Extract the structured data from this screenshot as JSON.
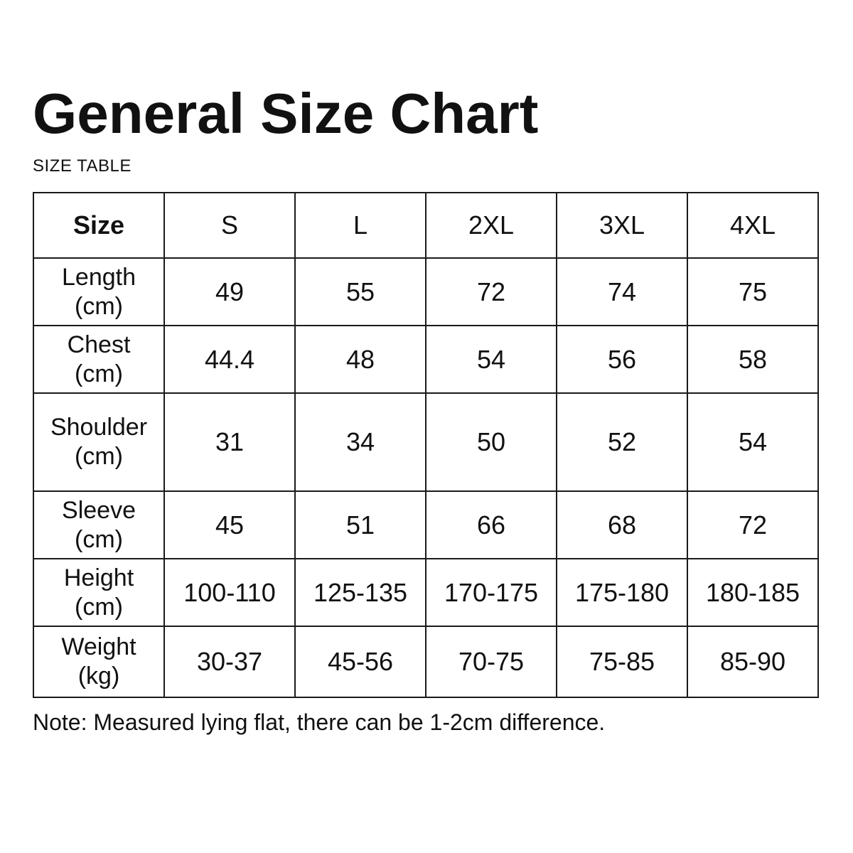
{
  "colors": {
    "background": "#ffffff",
    "text": "#111111",
    "border": "#1a1a1a"
  },
  "header": {
    "title": "General Size Chart",
    "subtitle": "SIZE TABLE"
  },
  "note": "Note: Measured lying flat, there can be 1-2cm difference.",
  "table": {
    "columns": [
      "Size",
      "S",
      "L",
      "2XL",
      "3XL",
      "4XL"
    ],
    "rows": [
      {
        "name": "Length",
        "unit": "(cm)",
        "values": [
          "49",
          "55",
          "72",
          "74",
          "75"
        ]
      },
      {
        "name": "Chest",
        "unit": "(cm)",
        "values": [
          "44.4",
          "48",
          "54",
          "56",
          "58"
        ]
      },
      {
        "name": "Shoulder",
        "unit": "(cm)",
        "values": [
          "31",
          "34",
          "50",
          "52",
          "54"
        ]
      },
      {
        "name": "Sleeve",
        "unit": "(cm)",
        "values": [
          "45",
          "51",
          "66",
          "68",
          "72"
        ]
      },
      {
        "name": "Height",
        "unit": "(cm)",
        "values": [
          "100-110",
          "125-135",
          "170-175",
          "175-180",
          "180-185"
        ]
      },
      {
        "name": "Weight",
        "unit": "(kg)",
        "values": [
          "30-37",
          "45-56",
          "70-75",
          "75-85",
          "85-90"
        ]
      }
    ]
  },
  "chart_data": {
    "type": "table",
    "title": "General Size Chart",
    "subtitle": "SIZE TABLE",
    "columns": [
      "Size",
      "S",
      "L",
      "2XL",
      "3XL",
      "4XL"
    ],
    "rows": [
      [
        "Length (cm)",
        49,
        55,
        72,
        74,
        75
      ],
      [
        "Chest (cm)",
        44.4,
        48,
        54,
        56,
        58
      ],
      [
        "Shoulder (cm)",
        31,
        34,
        50,
        52,
        54
      ],
      [
        "Sleeve (cm)",
        45,
        51,
        66,
        68,
        72
      ],
      [
        "Height (cm)",
        "100-110",
        "125-135",
        "170-175",
        "175-180",
        "180-185"
      ],
      [
        "Weight (kg)",
        "30-37",
        "45-56",
        "70-75",
        "75-85",
        "85-90"
      ]
    ],
    "note": "Note: Measured lying flat, there can be 1-2cm difference."
  }
}
